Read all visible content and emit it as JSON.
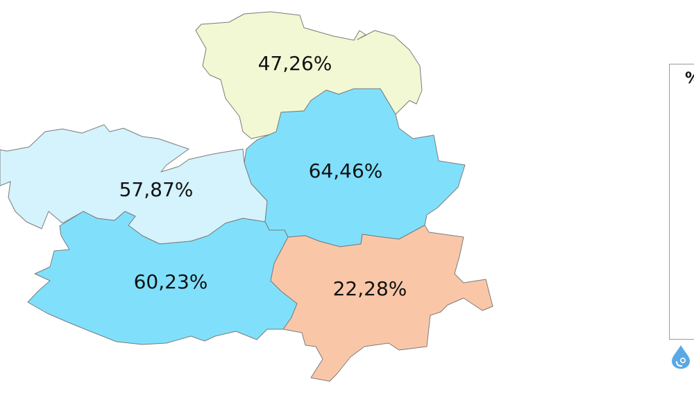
{
  "map": {
    "regions": [
      {
        "id": "north",
        "value_label": "47,26%",
        "fill": "#f2f8d4"
      },
      {
        "id": "west",
        "value_label": "57,87%",
        "fill": "#d4f3fc"
      },
      {
        "id": "center",
        "value_label": "64,46%",
        "fill": "#80e0fb"
      },
      {
        "id": "southwest",
        "value_label": "60,23%",
        "fill": "#80e0fb"
      },
      {
        "id": "southeast",
        "value_label": "22,28%",
        "fill": "#f9c7a8"
      }
    ]
  },
  "legend": {
    "title": "%",
    "icon": "water-drop-icon",
    "icon_color": "#5aa9e6"
  }
}
